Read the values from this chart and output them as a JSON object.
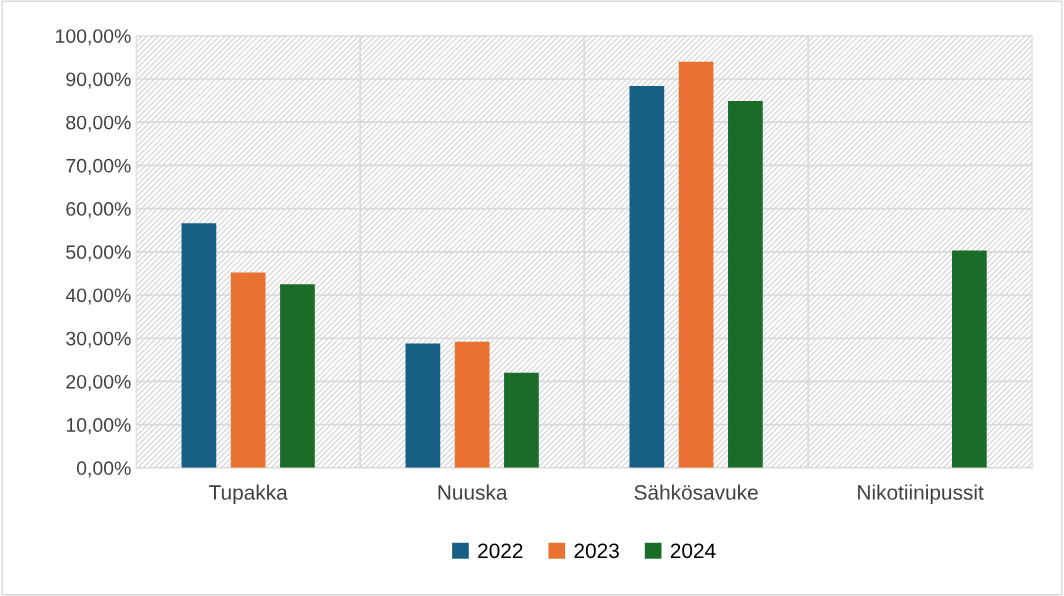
{
  "chart_data": {
    "type": "bar",
    "categories": [
      "Tupakka",
      "Nuuska",
      "Sähkösavuke",
      "Nikotiinipussit"
    ],
    "series": [
      {
        "name": "2022",
        "color": "#175f84",
        "values": [
          56.6,
          28.8,
          88.4,
          null
        ]
      },
      {
        "name": "2023",
        "color": "#e97132",
        "values": [
          45.2,
          29.2,
          94.0,
          null
        ]
      },
      {
        "name": "2024",
        "color": "#1b6b29",
        "values": [
          42.5,
          22.0,
          84.9,
          50.3
        ]
      }
    ],
    "ylim": [
      0,
      100
    ],
    "yticks": [
      {
        "value": 0,
        "label": "0,00%"
      },
      {
        "value": 10,
        "label": "10,00%"
      },
      {
        "value": 20,
        "label": "20,00%"
      },
      {
        "value": 30,
        "label": "30,00%"
      },
      {
        "value": 40,
        "label": "40,00%"
      },
      {
        "value": 50,
        "label": "50,00%"
      },
      {
        "value": 60,
        "label": "60,00%"
      },
      {
        "value": 70,
        "label": "70,00%"
      },
      {
        "value": 80,
        "label": "80,00%"
      },
      {
        "value": 90,
        "label": "90,00%"
      },
      {
        "value": 100,
        "label": "100,00%"
      }
    ],
    "grid": true,
    "legend": "bottom"
  }
}
